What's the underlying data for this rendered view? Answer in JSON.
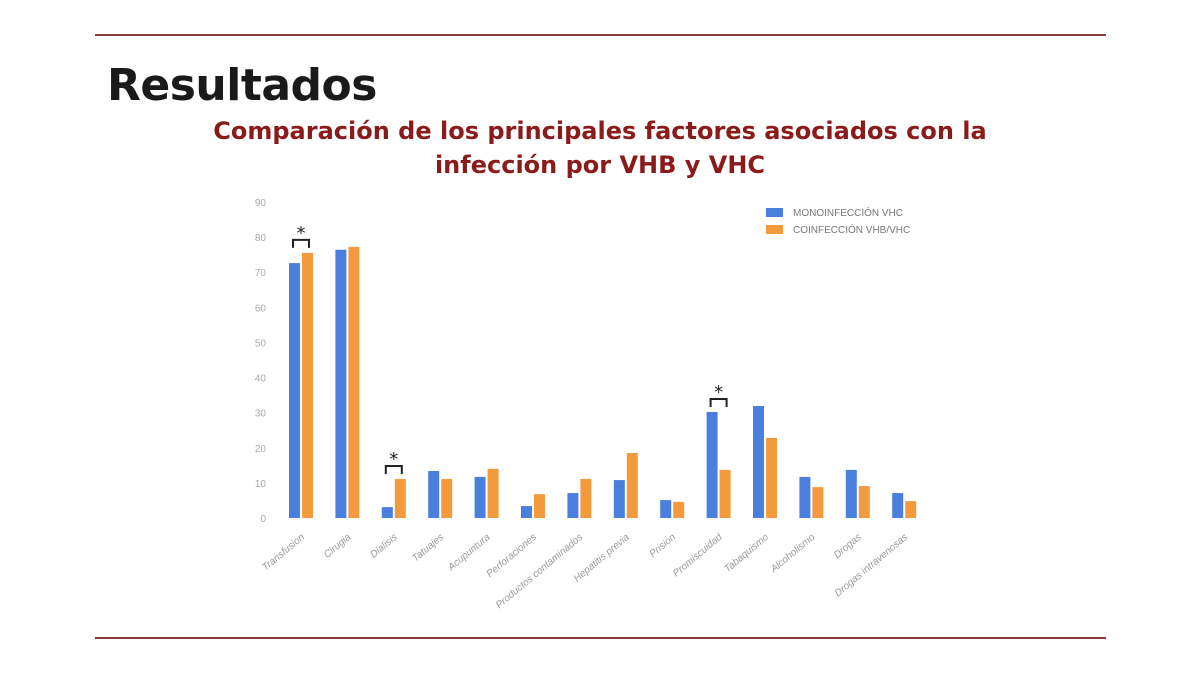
{
  "slide": {
    "heading": "Resultados",
    "subtitle": "Comparación de los principales factores asociados con la infección por VHB y VHC"
  },
  "chart_data": {
    "type": "bar",
    "title": "",
    "xlabel": "",
    "ylabel": "",
    "ylim": [
      0,
      90
    ],
    "yticks": [
      0,
      10,
      20,
      30,
      40,
      50,
      60,
      70,
      80,
      90
    ],
    "grid": false,
    "legend_position": "top-right",
    "categories": [
      "Transfusion",
      "Cirugia",
      "Dialisis",
      "Tatuajes",
      "Acupuntura",
      "Perforaciones",
      "Productos contaminados",
      "Hepatitis previa",
      "Prision",
      "Promiscuidad",
      "Tabaquismo",
      "Alcoholismo",
      "Drogas",
      "Drogas intravenosas"
    ],
    "series": [
      {
        "name": "MONOINFECCIÓN VHC",
        "color": "#4a7fde",
        "values": [
          72.6,
          76.4,
          3.1,
          13.4,
          11.7,
          3.4,
          7.1,
          10.8,
          5.1,
          30.2,
          31.9,
          11.7,
          13.7,
          7.1
        ]
      },
      {
        "name": "COINFECCIÓN VHB/VHC",
        "color": "#f39a3c",
        "values": [
          75.5,
          77.2,
          11.1,
          11.1,
          14.0,
          6.8,
          11.1,
          18.5,
          4.6,
          13.7,
          22.8,
          8.8,
          9.1,
          4.8
        ]
      }
    ],
    "annotations": [
      {
        "category": "Transfusion",
        "text": "*"
      },
      {
        "category": "Dialisis",
        "text": "*"
      },
      {
        "category": "Promiscuidad",
        "text": "*"
      }
    ]
  }
}
